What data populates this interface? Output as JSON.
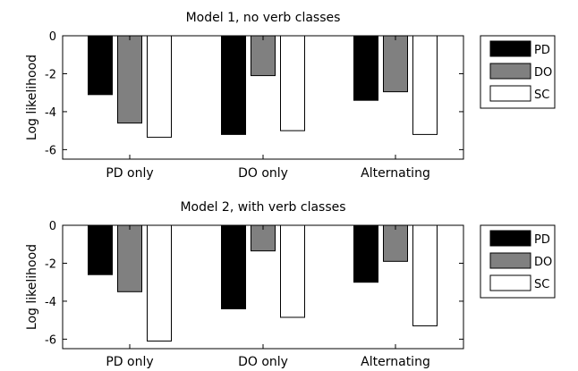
{
  "chart_data": [
    {
      "type": "bar",
      "title": "Model 1, no verb classes",
      "ylabel": "Log likelihood",
      "xlabel": "",
      "ylim": [
        -6.5,
        0
      ],
      "yticks": [
        0,
        -2,
        -4,
        -6
      ],
      "ytick_labels": [
        "0",
        "-2",
        "-4",
        "-6"
      ],
      "categories": [
        "PD only",
        "DO only",
        "Alternating"
      ],
      "series": [
        {
          "name": "PD",
          "color": "#000000",
          "values": [
            -3.1,
            -5.2,
            -3.4
          ]
        },
        {
          "name": "DO",
          "color": "#808080",
          "values": [
            -4.6,
            -2.1,
            -2.95
          ]
        },
        {
          "name": "SC",
          "color": "#ffffff",
          "values": [
            -5.35,
            -5.0,
            -5.2
          ]
        }
      ],
      "legend": "right",
      "grid": false
    },
    {
      "type": "bar",
      "title": "Model 2, with verb classes",
      "ylabel": "Log likelihood",
      "xlabel": "",
      "ylim": [
        -6.5,
        0
      ],
      "yticks": [
        0,
        -2,
        -4,
        -6
      ],
      "ytick_labels": [
        "0",
        "-2",
        "-4",
        "-6"
      ],
      "categories": [
        "PD only",
        "DO only",
        "Alternating"
      ],
      "series": [
        {
          "name": "PD",
          "color": "#000000",
          "values": [
            -2.6,
            -4.4,
            -3.0
          ]
        },
        {
          "name": "DO",
          "color": "#808080",
          "values": [
            -3.5,
            -1.35,
            -1.9
          ]
        },
        {
          "name": "SC",
          "color": "#ffffff",
          "values": [
            -6.1,
            -4.85,
            -5.3
          ]
        }
      ],
      "legend": "right",
      "grid": false
    }
  ]
}
